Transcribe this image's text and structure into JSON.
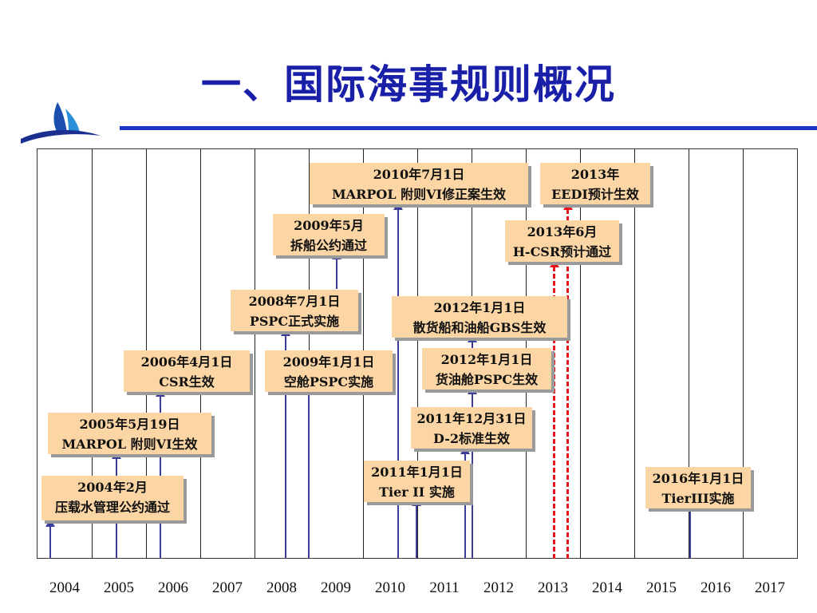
{
  "title": "一、国际海事规则概况",
  "years": [
    "2004",
    "2005",
    "2006",
    "2007",
    "2008",
    "2009",
    "2010",
    "2011",
    "2012",
    "2013",
    "2014",
    "2015",
    "2016",
    "2017"
  ],
  "events": {
    "marpol_vi_amend": {
      "line1": "2010年7月1日",
      "line2": "MARPOL 附则VI修正案生效"
    },
    "eedi": {
      "line1": "2013年",
      "line2": "EEDI预计生效"
    },
    "ship_recycling": {
      "line1": "2009年5月",
      "line2": "拆船公约通过"
    },
    "hcsr": {
      "line1": "2013年6月",
      "line2": "H-CSR预计通过"
    },
    "pspc_2008": {
      "line1": "2008年7月1日",
      "line2": "PSPC正式实施"
    },
    "gbs": {
      "line1": "2012年1月1日",
      "line2": "散货船和油船GBS生效"
    },
    "csr": {
      "line1": "2006年4月1日",
      "line2": "CSR生效"
    },
    "pspc_void": {
      "line1": "2009年1月1日",
      "line2": "空舱PSPC实施"
    },
    "pspc_cargo_oil": {
      "line1": "2012年1月1日",
      "line2": "货油舱PSPC生效"
    },
    "marpol_vi": {
      "line1": "2005年5月19日",
      "line2": "MARPOL 附则VI生效"
    },
    "d2": {
      "line1": "2011年12月31日",
      "line2": "D-2标准生效"
    },
    "tier2": {
      "line1": "2011年1月1日",
      "line2": "Tier II 实施"
    },
    "tier3": {
      "line1": "2016年1月1日",
      "line2": "TierIII实施"
    },
    "ballast": {
      "line1": "2004年2月",
      "line2": "压载水管理公约通过"
    }
  },
  "colors": {
    "title": "#1a1fa8",
    "box": "#fbd5a3",
    "arrow": "#3a3d9a",
    "dashed": "#e8141c"
  }
}
